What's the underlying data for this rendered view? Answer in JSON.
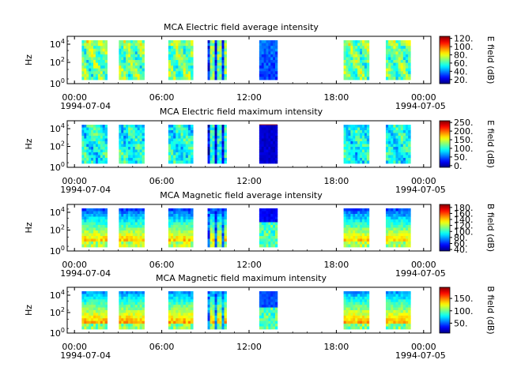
{
  "chart_data": [
    {
      "type": "heatmap",
      "title": "MCA  Electric field average intensity",
      "ylabel": "Hz",
      "colorbar_label": "E field (dB)",
      "colorbar_ticks": [
        "20.",
        "40.",
        "60.",
        "80.",
        "100.",
        "120."
      ],
      "colorbar_range": [
        10,
        125
      ],
      "y_ticks": [
        "10^0",
        "10^2",
        "10^4"
      ],
      "x_ticks": [
        "00:00",
        "06:00",
        "12:00",
        "18:00",
        "00:00"
      ],
      "x_dates": [
        "1994-07-04",
        "1994-07-05"
      ],
      "style": "avg_e"
    },
    {
      "type": "heatmap",
      "title": "MCA  Electric field maximum intensity",
      "ylabel": "Hz",
      "colorbar_label": "E field (dB)",
      "colorbar_ticks": [
        "0.",
        "50.",
        "100.",
        "150.",
        "200.",
        "250."
      ],
      "colorbar_range": [
        -10,
        260
      ],
      "y_ticks": [
        "10^0",
        "10^2",
        "10^4"
      ],
      "x_ticks": [
        "00:00",
        "06:00",
        "12:00",
        "18:00",
        "00:00"
      ],
      "x_dates": [
        "1994-07-04",
        "1994-07-05"
      ],
      "style": "max_e"
    },
    {
      "type": "heatmap",
      "title": "MCA  Magnetic field average intensity",
      "ylabel": "Hz",
      "colorbar_label": "B field (dB)",
      "colorbar_ticks": [
        "40.",
        "60.",
        "80.",
        "100.",
        "120.",
        "140.",
        "160.",
        "180."
      ],
      "colorbar_range": [
        35,
        190
      ],
      "y_ticks": [
        "10^0",
        "10^2",
        "10^4"
      ],
      "x_ticks": [
        "00:00",
        "06:00",
        "12:00",
        "18:00",
        "00:00"
      ],
      "x_dates": [
        "1994-07-04",
        "1994-07-05"
      ],
      "style": "avg_b"
    },
    {
      "type": "heatmap",
      "title": "MCA  Magnetic field maximum intensity",
      "ylabel": "Hz",
      "colorbar_label": "B field (dB)",
      "colorbar_ticks": [
        "50.",
        "100.",
        "150."
      ],
      "colorbar_range": [
        10,
        195
      ],
      "y_ticks": [
        "10^0",
        "10^2",
        "10^4"
      ],
      "x_ticks": [
        "00:00",
        "06:00",
        "12:00",
        "18:00",
        "00:00"
      ],
      "x_dates": [
        "1994-07-04",
        "1994-07-05"
      ],
      "style": "max_b"
    }
  ],
  "data_intervals_hours": [
    [
      1.0,
      2.75
    ],
    [
      3.55,
      5.3
    ],
    [
      6.95,
      8.65
    ],
    [
      9.65,
      10.95
    ],
    [
      13.2,
      14.45
    ],
    [
      19.0,
      20.75
    ],
    [
      21.9,
      23.6
    ]
  ]
}
